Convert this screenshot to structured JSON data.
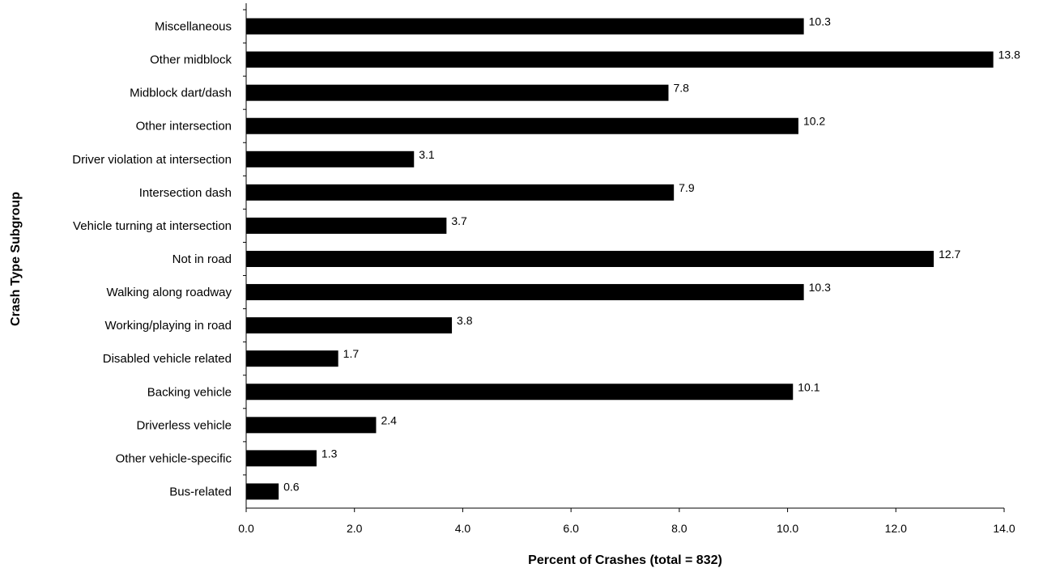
{
  "chart_data": {
    "type": "bar",
    "orientation": "horizontal",
    "title": "",
    "xlabel": "Percent of Crashes (total = 832)",
    "ylabel": "Crash Type Subgroup",
    "categories": [
      "Miscellaneous",
      "Other midblock",
      "Midblock dart/dash",
      "Other intersection",
      "Driver violation at intersection",
      "Intersection dash",
      "Vehicle turning at intersection",
      "Not in road",
      "Walking along roadway",
      "Working/playing in road",
      "Disabled vehicle related",
      "Backing vehicle",
      "Driverless vehicle",
      "Other vehicle-specific",
      "Bus-related"
    ],
    "values": [
      10.3,
      13.8,
      7.8,
      10.2,
      3.1,
      7.9,
      3.7,
      12.7,
      10.3,
      3.8,
      1.7,
      10.1,
      2.4,
      1.3,
      0.6
    ],
    "value_labels": [
      "10.3",
      "13.8",
      "7.8",
      "10.2",
      "3.1",
      "7.9",
      "3.7",
      "12.7",
      "10.3",
      "3.8",
      "1.7",
      "10.1",
      "2.4",
      "1.3",
      "0.6"
    ],
    "xlim": [
      0,
      14
    ],
    "xticks": [
      0,
      2,
      4,
      6,
      8,
      10,
      12,
      14
    ],
    "xtick_labels": [
      "0.0",
      "2.0",
      "4.0",
      "6.0",
      "8.0",
      "10.0",
      "12.0",
      "14.0"
    ],
    "grid": false,
    "legend": "none",
    "bar_color": "#000000"
  }
}
